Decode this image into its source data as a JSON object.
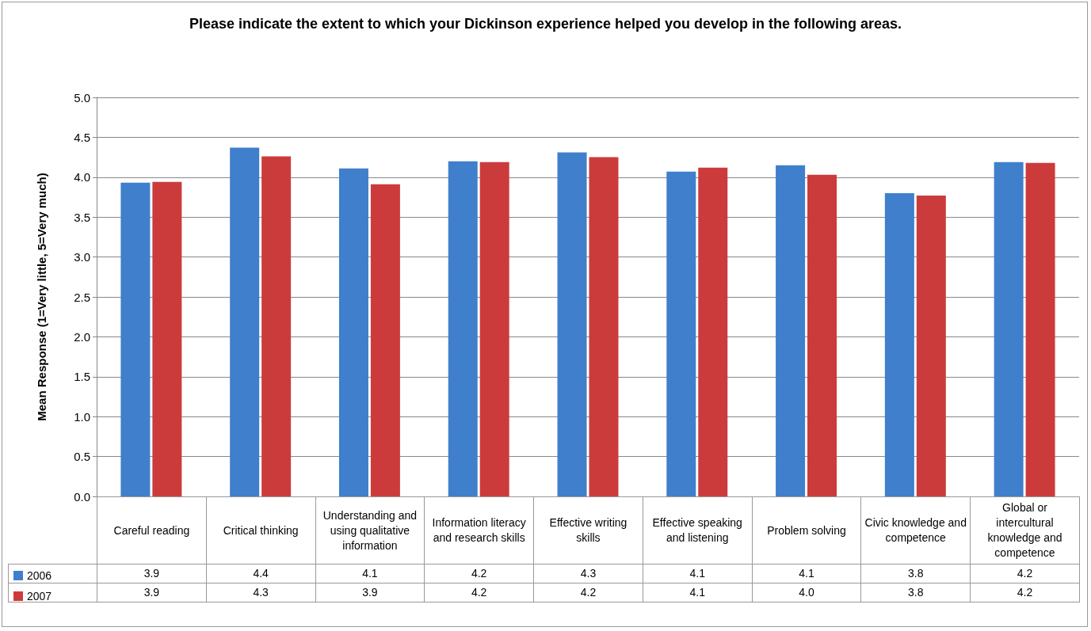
{
  "chart_data": {
    "type": "bar",
    "title": "Please indicate the extent to which your Dickinson experience helped you develop in the following areas.",
    "ylabel": "Mean Response (1=Very little, 5=Very much)",
    "categories": [
      "Careful reading",
      "Critical thinking",
      "Understanding and using qualitative information",
      "Information literacy and research skills",
      "Effective writing skills",
      "Effective speaking and listening",
      "Problem solving",
      "Civic knowledge and competence",
      "Global or intercultural knowledge and competence"
    ],
    "series": [
      {
        "name": "2006",
        "color": "#3f7fcc",
        "values": [
          3.93,
          4.37,
          4.11,
          4.2,
          4.31,
          4.07,
          4.15,
          3.8,
          4.19
        ],
        "value_labels": [
          "3.9",
          "4.4",
          "4.1",
          "4.2",
          "4.3",
          "4.1",
          "4.1",
          "3.8",
          "4.2"
        ]
      },
      {
        "name": "2007",
        "color": "#cc3b3b",
        "values": [
          3.94,
          4.26,
          3.91,
          4.19,
          4.25,
          4.12,
          4.03,
          3.77,
          4.18
        ],
        "value_labels": [
          "3.9",
          "4.3",
          "3.9",
          "4.2",
          "4.2",
          "4.1",
          "4.0",
          "3.8",
          "4.2"
        ]
      }
    ],
    "ylim": [
      0,
      5
    ],
    "yticks": [
      {
        "value": 0,
        "label": "0.0"
      },
      {
        "value": 0.5,
        "label": "0.5"
      },
      {
        "value": 1,
        "label": "1.0"
      },
      {
        "value": 1.5,
        "label": "1.5"
      },
      {
        "value": 2,
        "label": "2.0"
      },
      {
        "value": 2.5,
        "label": "2.5"
      },
      {
        "value": 3,
        "label": "3.0"
      },
      {
        "value": 3.5,
        "label": "3.5"
      },
      {
        "value": 4,
        "label": "4.0"
      },
      {
        "value": 4.5,
        "label": "4.5"
      },
      {
        "value": 5,
        "label": "5.0"
      }
    ],
    "grid": "y",
    "legend": "bottom left"
  }
}
